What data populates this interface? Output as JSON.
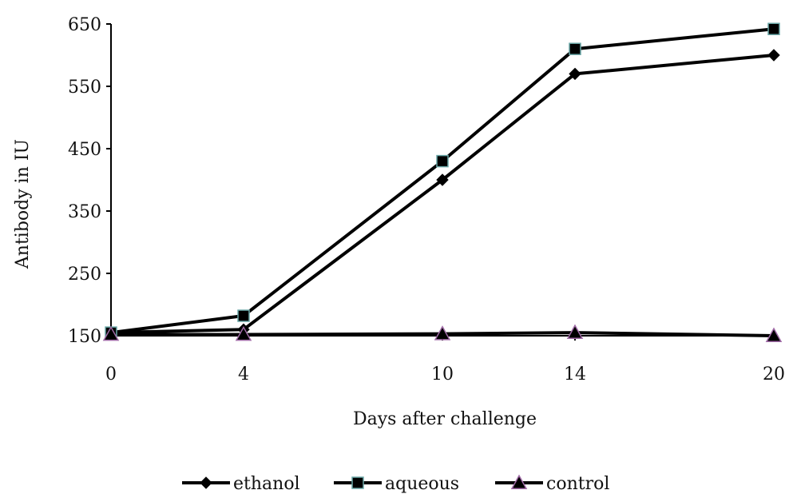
{
  "chart_data": {
    "type": "line",
    "title": "",
    "xlabel": "Days after challenge",
    "ylabel": "Antibody in IU",
    "x": [
      0,
      4,
      10,
      14,
      20
    ],
    "x_tick_labels": [
      "0",
      "4",
      "10",
      "14",
      "20"
    ],
    "y_tick_labels": [
      "150",
      "250",
      "350",
      "450",
      "550",
      "650"
    ],
    "ylim": [
      150,
      650
    ],
    "grid": false,
    "legend_position": "bottom",
    "series": [
      {
        "name": "ethanol",
        "values": [
          155,
          160,
          400,
          570,
          600
        ],
        "marker": "diamond",
        "color": "#000000"
      },
      {
        "name": "aqueous",
        "values": [
          155,
          182,
          430,
          610,
          642
        ],
        "marker": "square",
        "color": "#000000"
      },
      {
        "name": "control",
        "values": [
          152,
          152,
          153,
          155,
          150
        ],
        "marker": "triangle",
        "color": "#000000"
      }
    ]
  }
}
